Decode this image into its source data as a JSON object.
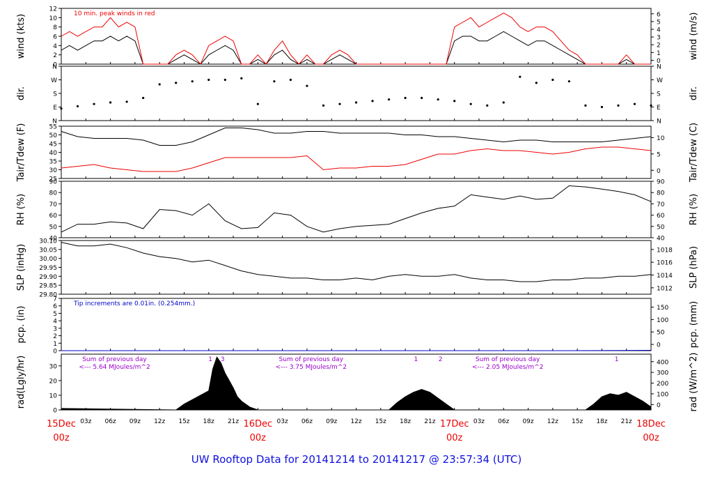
{
  "footer": {
    "title": "UW Rooftop Data for 20141214  to  20141217 @ 23:57:34  (UTC)"
  },
  "colors": {
    "axis": "#000000",
    "red": "#ee0000",
    "blue": "#0000cc",
    "purple": "#9900cc"
  },
  "chart_data": [
    {
      "type": "line",
      "name": "wind",
      "ylabel": "wind (kts)",
      "ylabel_right": "wind (m/s)",
      "ylim": [
        0,
        12
      ],
      "yticks": [
        0,
        2,
        4,
        6,
        8,
        10,
        12
      ],
      "yticks_right": [
        "0",
        "1",
        "2",
        "3",
        "4",
        "5",
        "6"
      ],
      "annotation": "10 min. peak winds in red",
      "x": [
        0,
        1,
        2,
        3,
        4,
        5,
        6,
        7,
        8,
        9,
        10,
        11,
        12,
        13,
        14,
        15,
        16,
        17,
        18,
        19,
        20,
        21,
        22,
        23,
        24,
        25,
        26,
        27,
        28,
        29,
        30,
        31,
        32,
        33,
        34,
        35,
        36,
        37,
        38,
        39,
        40,
        41,
        42,
        43,
        44,
        45,
        46,
        47,
        48,
        49,
        50,
        51,
        52,
        53,
        54,
        55,
        56,
        57,
        58,
        59,
        60,
        61,
        62,
        63,
        64,
        65,
        66,
        67,
        68,
        69,
        70,
        71,
        72
      ],
      "series": [
        {
          "values": [
            3,
            4,
            3,
            4,
            5,
            5,
            6,
            5,
            6,
            5,
            0,
            0,
            0,
            0,
            1,
            2,
            1,
            0,
            2,
            3,
            4,
            3,
            0,
            0,
            1,
            0,
            2,
            3,
            1,
            0,
            1,
            0,
            0,
            1,
            2,
            1,
            0,
            0,
            0,
            0,
            0,
            0,
            0,
            0,
            0,
            0,
            0,
            0,
            5,
            6,
            6,
            5,
            5,
            6,
            7,
            6,
            5,
            4,
            5,
            5,
            4,
            3,
            2,
            1,
            0,
            0,
            0,
            0,
            0,
            1,
            0,
            0,
            0
          ]
        },
        {
          "values": [
            6,
            7,
            6,
            7,
            8,
            8,
            10,
            8,
            9,
            8,
            0,
            0,
            0,
            0,
            2,
            3,
            2,
            0,
            4,
            5,
            6,
            5,
            0,
            0,
            2,
            0,
            3,
            5,
            2,
            0,
            2,
            0,
            0,
            2,
            3,
            2,
            0,
            0,
            0,
            0,
            0,
            0,
            0,
            0,
            0,
            0,
            0,
            0,
            8,
            9,
            10,
            8,
            9,
            10,
            11,
            10,
            8,
            7,
            8,
            8,
            7,
            5,
            3,
            2,
            0,
            0,
            0,
            0,
            0,
            2,
            0,
            0,
            0
          ]
        }
      ]
    },
    {
      "type": "scatter",
      "name": "direction",
      "ylabel": "dir.",
      "ylabel_right": "dir.",
      "yticks": [
        "N",
        "E",
        "S",
        "W",
        "N"
      ],
      "ylim": [
        0,
        360
      ],
      "x": [
        0,
        2,
        4,
        6,
        8,
        10,
        12,
        14,
        16,
        18,
        20,
        22,
        24,
        26,
        28,
        30,
        32,
        34,
        36,
        38,
        40,
        42,
        44,
        46,
        48,
        50,
        52,
        54,
        56,
        58,
        60,
        62,
        64,
        66,
        68,
        70,
        72
      ],
      "values": [
        80,
        95,
        110,
        120,
        125,
        150,
        240,
        250,
        260,
        270,
        270,
        280,
        110,
        260,
        270,
        230,
        100,
        110,
        120,
        130,
        140,
        150,
        150,
        140,
        130,
        110,
        100,
        120,
        290,
        250,
        270,
        260,
        100,
        90,
        100,
        110,
        100
      ]
    },
    {
      "type": "line",
      "name": "temperature",
      "ylabel": "Tair/Tdew (F)",
      "ylabel_right": "Tair/Tdew (C)",
      "ylim": [
        25,
        55
      ],
      "yticks": [
        25,
        30,
        35,
        40,
        45,
        50,
        55
      ],
      "yticks_right": [
        "0",
        "5",
        "10"
      ],
      "x": [
        0,
        2,
        4,
        6,
        8,
        10,
        12,
        14,
        16,
        18,
        20,
        22,
        24,
        26,
        28,
        30,
        32,
        34,
        36,
        38,
        40,
        42,
        44,
        46,
        48,
        50,
        52,
        54,
        56,
        58,
        60,
        62,
        64,
        66,
        68,
        70,
        72
      ],
      "series": [
        {
          "name": "Tair",
          "values": [
            52,
            49,
            48,
            48,
            48,
            47,
            44,
            44,
            46,
            50,
            54,
            54,
            53,
            51,
            51,
            52,
            52,
            51,
            51,
            51,
            51,
            50,
            50,
            49,
            49,
            48,
            47,
            46,
            47,
            47,
            46,
            46,
            46,
            46,
            47,
            48,
            49
          ]
        },
        {
          "name": "Tdew",
          "values": [
            31,
            32,
            33,
            31,
            30,
            29,
            29,
            29,
            31,
            34,
            37,
            37,
            37,
            37,
            37,
            38,
            30,
            31,
            31,
            32,
            32,
            33,
            36,
            39,
            39,
            41,
            42,
            41,
            41,
            40,
            39,
            40,
            42,
            43,
            43,
            42,
            41
          ]
        }
      ]
    },
    {
      "type": "line",
      "name": "humidity",
      "ylabel": "RH (%)",
      "ylabel_right": "RH (%)",
      "ylim": [
        40,
        90
      ],
      "yticks": [
        40,
        50,
        60,
        70,
        80,
        90
      ],
      "x": [
        0,
        2,
        4,
        6,
        8,
        10,
        12,
        14,
        16,
        18,
        20,
        22,
        24,
        26,
        28,
        30,
        32,
        34,
        36,
        38,
        40,
        42,
        44,
        46,
        48,
        50,
        52,
        54,
        56,
        58,
        60,
        62,
        64,
        66,
        68,
        70,
        72
      ],
      "series": [
        {
          "values": [
            45,
            52,
            52,
            54,
            53,
            48,
            65,
            64,
            60,
            70,
            55,
            48,
            49,
            62,
            60,
            50,
            45,
            48,
            50,
            51,
            52,
            57,
            62,
            66,
            68,
            78,
            76,
            74,
            77,
            74,
            75,
            86,
            85,
            83,
            81,
            78,
            72
          ]
        }
      ]
    },
    {
      "type": "line",
      "name": "pressure",
      "ylabel": "SLP (inHg)",
      "ylabel_right": "SLP (hPa)",
      "ylim": [
        29.8,
        30.1
      ],
      "yticks": [
        29.8,
        29.85,
        29.9,
        29.95,
        30.0,
        30.05,
        30.1
      ],
      "yticks_right": [
        "1012",
        "1014",
        "1016",
        "1018"
      ],
      "x": [
        0,
        2,
        4,
        6,
        8,
        10,
        12,
        14,
        16,
        18,
        20,
        22,
        24,
        26,
        28,
        30,
        32,
        34,
        36,
        38,
        40,
        42,
        44,
        46,
        48,
        50,
        52,
        54,
        56,
        58,
        60,
        62,
        64,
        66,
        68,
        70,
        72
      ],
      "series": [
        {
          "values": [
            30.09,
            30.07,
            30.07,
            30.08,
            30.06,
            30.03,
            30.01,
            30.0,
            29.98,
            29.99,
            29.96,
            29.93,
            29.91,
            29.9,
            29.89,
            29.89,
            29.88,
            29.88,
            29.89,
            29.88,
            29.9,
            29.91,
            29.9,
            29.9,
            29.91,
            29.89,
            29.88,
            29.88,
            29.87,
            29.87,
            29.88,
            29.88,
            29.89,
            29.89,
            29.9,
            29.9,
            29.91
          ]
        }
      ]
    },
    {
      "type": "line",
      "name": "precipitation",
      "ylabel": "pcp. (in)",
      "ylabel_right": "pcp. (mm)",
      "ylim": [
        0,
        7
      ],
      "yticks": [
        0,
        1,
        2,
        3,
        4,
        5,
        6,
        7
      ],
      "yticks_right": [
        "0",
        "50",
        "100",
        "150"
      ],
      "annotation": "Tip increments are 0.01in. (0.254mm.)",
      "x": [
        0,
        62,
        72
      ],
      "series": [
        {
          "values": [
            0,
            0,
            0.05
          ]
        }
      ]
    },
    {
      "type": "area",
      "name": "radiation",
      "ylabel": "rad(Lgly/hr)",
      "ylabel_right": "rad (W/m^2)",
      "ylim": [
        0,
        38
      ],
      "yticks": [
        0,
        10,
        20,
        30
      ],
      "yticks_right": [
        "0",
        "100",
        "200",
        "300",
        "400"
      ],
      "x": [
        0,
        14,
        15,
        16,
        17,
        18,
        18.5,
        19,
        19.5,
        20,
        20.5,
        21,
        21.5,
        22,
        23,
        24,
        40,
        41,
        42,
        43,
        44,
        45,
        46,
        47,
        48,
        64,
        65,
        66,
        67,
        68,
        69,
        70,
        71,
        72
      ],
      "series": [
        {
          "values": [
            1,
            0,
            4,
            7,
            10,
            13,
            28,
            36,
            32,
            25,
            20,
            15,
            9,
            6,
            2,
            0,
            0,
            5,
            9,
            12,
            14,
            12,
            8,
            4,
            0,
            0,
            4,
            9,
            11,
            10,
            12,
            9,
            6,
            2
          ]
        }
      ],
      "annotations": [
        {
          "text": "Sum of previous day",
          "day": 0
        },
        {
          "text": "<--- 5.64 MJoules/m^2",
          "day": 0
        },
        {
          "text": "Sum of previous day",
          "day": 1
        },
        {
          "text": "<--- 3.75 MJoules/m^2",
          "day": 1
        },
        {
          "text": "Sum of previous day",
          "day": 2
        },
        {
          "text": "<--- 2.05 MJoules/m^2",
          "day": 2
        }
      ],
      "markers": [
        {
          "x": 18.2,
          "label": "1"
        },
        {
          "x": 19.7,
          "label": "3"
        },
        {
          "x": 43.3,
          "label": "1"
        },
        {
          "x": 46.3,
          "label": "2"
        },
        {
          "x": 67.8,
          "label": "1"
        }
      ]
    }
  ],
  "time_axis": {
    "minor_labels": [
      "03z",
      "06z",
      "09z",
      "12z",
      "15z",
      "18z",
      "21z",
      "",
      "03z",
      "06z",
      "09z",
      "12z",
      "15z",
      "18z",
      "21z",
      "",
      "03z",
      "06z",
      "09z",
      "12z",
      "15z",
      "18z",
      "21z"
    ],
    "day_labels": [
      {
        "day": "15Dec",
        "hour": "00z"
      },
      {
        "day": "16Dec",
        "hour": "00z"
      },
      {
        "day": "17Dec",
        "hour": "00z"
      },
      {
        "day": "18Dec",
        "hour": "00z"
      }
    ]
  }
}
